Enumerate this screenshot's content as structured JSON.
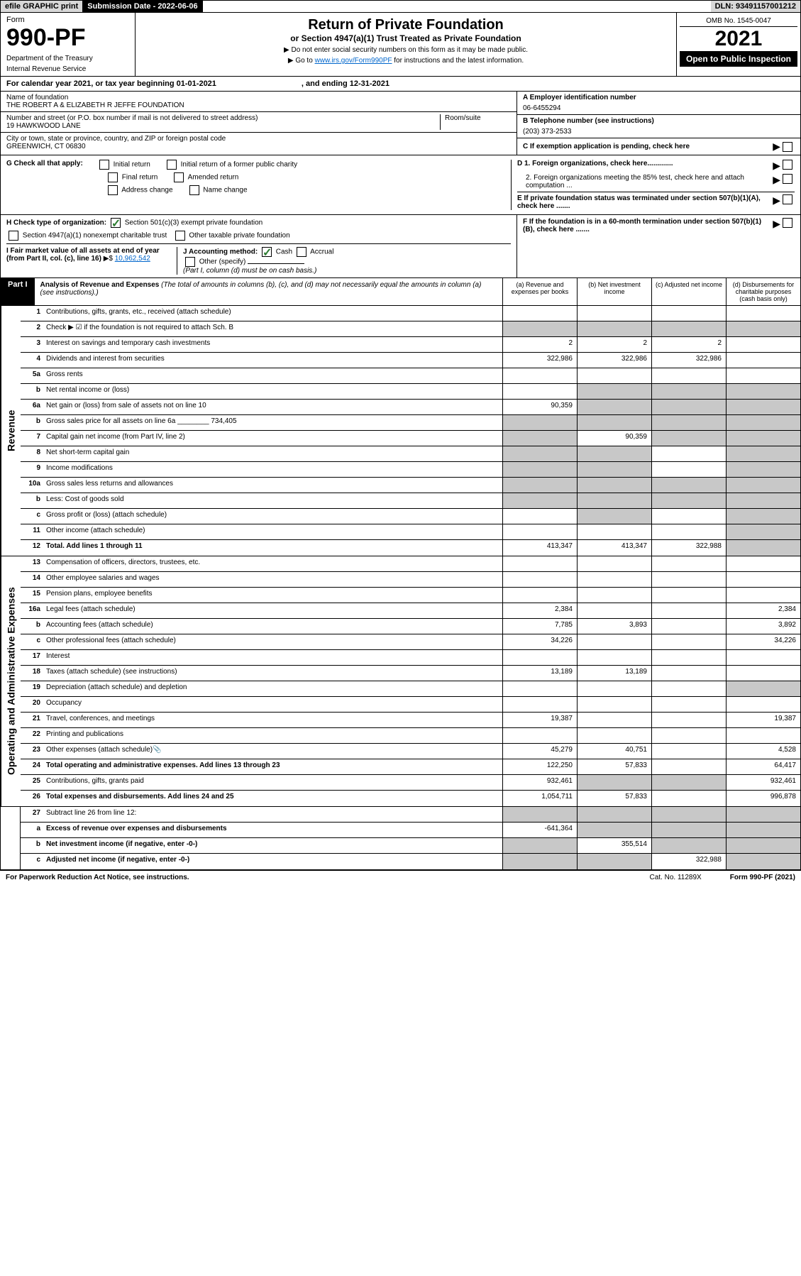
{
  "topbar": {
    "efile": "efile GRAPHIC print",
    "submission_label": "Submission Date - 2022-06-06",
    "dln": "DLN: 93491157001212"
  },
  "header": {
    "form_label": "Form",
    "form_number": "990-PF",
    "dept": "Department of the Treasury",
    "irs": "Internal Revenue Service",
    "title": "Return of Private Foundation",
    "subtitle": "or Section 4947(a)(1) Trust Treated as Private Foundation",
    "instr1": "▶ Do not enter social security numbers on this form as it may be made public.",
    "instr2_prefix": "▶ Go to ",
    "instr2_link": "www.irs.gov/Form990PF",
    "instr2_suffix": " for instructions and the latest information.",
    "omb": "OMB No. 1545-0047",
    "year": "2021",
    "open_public": "Open to Public Inspection"
  },
  "cal_year": {
    "prefix": "For calendar year 2021, or tax year beginning 01-01-2021",
    "suffix": ", and ending 12-31-2021"
  },
  "entity": {
    "name_label": "Name of foundation",
    "name": "THE ROBERT A & ELIZABETH R JEFFE FOUNDATION",
    "address_label": "Number and street (or P.O. box number if mail is not delivered to street address)",
    "address": "19 HAWKWOOD LANE",
    "room_label": "Room/suite",
    "city_label": "City or town, state or province, country, and ZIP or foreign postal code",
    "city": "GREENWICH, CT  06830",
    "ein_label": "A Employer identification number",
    "ein": "06-6455294",
    "phone_label": "B Telephone number (see instructions)",
    "phone": "(203) 373-2533",
    "c_label": "C If exemption application is pending, check here",
    "d1_label": "D 1. Foreign organizations, check here.............",
    "d2_label": "2. Foreign organizations meeting the 85% test, check here and attach computation ...",
    "e_label": "E If private foundation status was terminated under section 507(b)(1)(A), check here .......",
    "f_label": "F If the foundation is in a 60-month termination under section 507(b)(1)(B), check here ......."
  },
  "section_g": {
    "label": "G Check all that apply:",
    "initial": "Initial return",
    "initial_former": "Initial return of a former public charity",
    "final": "Final return",
    "amended": "Amended return",
    "address_change": "Address change",
    "name_change": "Name change"
  },
  "section_h": {
    "label": "H Check type of organization:",
    "opt1": "Section 501(c)(3) exempt private foundation",
    "opt2": "Section 4947(a)(1) nonexempt charitable trust",
    "opt3": "Other taxable private foundation"
  },
  "section_i": {
    "label": "I Fair market value of all assets at end of year (from Part II, col. (c), line 16)",
    "value": "10,962,542"
  },
  "section_j": {
    "label": "J Accounting method:",
    "cash": "Cash",
    "accrual": "Accrual",
    "other": "Other (specify)",
    "note": "(Part I, column (d) must be on cash basis.)"
  },
  "part1": {
    "label": "Part I",
    "title": "Analysis of Revenue and Expenses",
    "note": "(The total of amounts in columns (b), (c), and (d) may not necessarily equal the amounts in column (a) (see instructions).)",
    "col_a": "(a) Revenue and expenses per books",
    "col_b": "(b) Net investment income",
    "col_c": "(c) Adjusted net income",
    "col_d": "(d) Disbursements for charitable purposes (cash basis only)"
  },
  "side_labels": {
    "revenue": "Revenue",
    "expenses": "Operating and Administrative Expenses"
  },
  "rows": [
    {
      "num": "1",
      "desc": "Contributions, gifts, grants, etc., received (attach schedule)",
      "a": "",
      "b": "",
      "c": "",
      "d": "",
      "shade_d": false
    },
    {
      "num": "2",
      "desc": "Check ▶ ☑ if the foundation is not required to attach Sch. B",
      "a": "",
      "b": "",
      "c": "",
      "d": "",
      "shade_d": false,
      "shade_all": true
    },
    {
      "num": "3",
      "desc": "Interest on savings and temporary cash investments",
      "a": "2",
      "b": "2",
      "c": "2",
      "d": ""
    },
    {
      "num": "4",
      "desc": "Dividends and interest from securities",
      "a": "322,986",
      "b": "322,986",
      "c": "322,986",
      "d": ""
    },
    {
      "num": "5a",
      "desc": "Gross rents",
      "a": "",
      "b": "",
      "c": "",
      "d": ""
    },
    {
      "num": "b",
      "desc": "Net rental income or (loss)",
      "a": "",
      "b": "",
      "c": "",
      "d": "",
      "shade_bcd": true
    },
    {
      "num": "6a",
      "desc": "Net gain or (loss) from sale of assets not on line 10",
      "a": "90,359",
      "b": "",
      "c": "",
      "d": "",
      "shade_bcd": true
    },
    {
      "num": "b",
      "desc": "Gross sales price for all assets on line 6a ________ 734,405",
      "a": "",
      "b": "",
      "c": "",
      "d": "",
      "shade_all": true
    },
    {
      "num": "7",
      "desc": "Capital gain net income (from Part IV, line 2)",
      "a": "",
      "b": "90,359",
      "c": "",
      "d": "",
      "shade_a": true,
      "shade_cd": true
    },
    {
      "num": "8",
      "desc": "Net short-term capital gain",
      "a": "",
      "b": "",
      "c": "",
      "d": "",
      "shade_ab": true,
      "shade_d": true
    },
    {
      "num": "9",
      "desc": "Income modifications",
      "a": "",
      "b": "",
      "c": "",
      "d": "",
      "shade_ab": true,
      "shade_d": true
    },
    {
      "num": "10a",
      "desc": "Gross sales less returns and allowances",
      "a": "",
      "b": "",
      "c": "",
      "d": "",
      "shade_all": true
    },
    {
      "num": "b",
      "desc": "Less: Cost of goods sold",
      "a": "",
      "b": "",
      "c": "",
      "d": "",
      "shade_all": true
    },
    {
      "num": "c",
      "desc": "Gross profit or (loss) (attach schedule)",
      "a": "",
      "b": "",
      "c": "",
      "d": "",
      "shade_b": true,
      "shade_d": true
    },
    {
      "num": "11",
      "desc": "Other income (attach schedule)",
      "a": "",
      "b": "",
      "c": "",
      "d": "",
      "shade_d": true
    },
    {
      "num": "12",
      "desc": "Total. Add lines 1 through 11",
      "a": "413,347",
      "b": "413,347",
      "c": "322,988",
      "d": "",
      "bold": true,
      "shade_d": true
    }
  ],
  "expense_rows": [
    {
      "num": "13",
      "desc": "Compensation of officers, directors, trustees, etc.",
      "a": "",
      "b": "",
      "c": "",
      "d": ""
    },
    {
      "num": "14",
      "desc": "Other employee salaries and wages",
      "a": "",
      "b": "",
      "c": "",
      "d": ""
    },
    {
      "num": "15",
      "desc": "Pension plans, employee benefits",
      "a": "",
      "b": "",
      "c": "",
      "d": ""
    },
    {
      "num": "16a",
      "desc": "Legal fees (attach schedule)",
      "a": "2,384",
      "b": "",
      "c": "",
      "d": "2,384"
    },
    {
      "num": "b",
      "desc": "Accounting fees (attach schedule)",
      "a": "7,785",
      "b": "3,893",
      "c": "",
      "d": "3,892"
    },
    {
      "num": "c",
      "desc": "Other professional fees (attach schedule)",
      "a": "34,226",
      "b": "",
      "c": "",
      "d": "34,226"
    },
    {
      "num": "17",
      "desc": "Interest",
      "a": "",
      "b": "",
      "c": "",
      "d": ""
    },
    {
      "num": "18",
      "desc": "Taxes (attach schedule) (see instructions)",
      "a": "13,189",
      "b": "13,189",
      "c": "",
      "d": ""
    },
    {
      "num": "19",
      "desc": "Depreciation (attach schedule) and depletion",
      "a": "",
      "b": "",
      "c": "",
      "d": "",
      "shade_d": true
    },
    {
      "num": "20",
      "desc": "Occupancy",
      "a": "",
      "b": "",
      "c": "",
      "d": ""
    },
    {
      "num": "21",
      "desc": "Travel, conferences, and meetings",
      "a": "19,387",
      "b": "",
      "c": "",
      "d": "19,387"
    },
    {
      "num": "22",
      "desc": "Printing and publications",
      "a": "",
      "b": "",
      "c": "",
      "d": ""
    },
    {
      "num": "23",
      "desc": "Other expenses (attach schedule)",
      "a": "45,279",
      "b": "40,751",
      "c": "",
      "d": "4,528",
      "icon": true
    },
    {
      "num": "24",
      "desc": "Total operating and administrative expenses. Add lines 13 through 23",
      "a": "122,250",
      "b": "57,833",
      "c": "",
      "d": "64,417",
      "bold": true
    },
    {
      "num": "25",
      "desc": "Contributions, gifts, grants paid",
      "a": "932,461",
      "b": "",
      "c": "",
      "d": "932,461",
      "shade_bc": true
    },
    {
      "num": "26",
      "desc": "Total expenses and disbursements. Add lines 24 and 25",
      "a": "1,054,711",
      "b": "57,833",
      "c": "",
      "d": "996,878",
      "bold": true
    }
  ],
  "bottom_rows": [
    {
      "num": "27",
      "desc": "Subtract line 26 from line 12:",
      "a": "",
      "b": "",
      "c": "",
      "d": "",
      "shade_all": true
    },
    {
      "num": "a",
      "desc": "Excess of revenue over expenses and disbursements",
      "a": "-641,364",
      "b": "",
      "c": "",
      "d": "",
      "bold": true,
      "shade_bcd": true
    },
    {
      "num": "b",
      "desc": "Net investment income (if negative, enter -0-)",
      "a": "",
      "b": "355,514",
      "c": "",
      "d": "",
      "bold": true,
      "shade_a": true,
      "shade_cd": true
    },
    {
      "num": "c",
      "desc": "Adjusted net income (if negative, enter -0-)",
      "a": "",
      "b": "",
      "c": "322,988",
      "d": "",
      "bold": true,
      "shade_ab": true,
      "shade_d": true
    }
  ],
  "footer": {
    "left": "For Paperwork Reduction Act Notice, see instructions.",
    "cat": "Cat. No. 11289X",
    "right": "Form 990-PF (2021)"
  }
}
